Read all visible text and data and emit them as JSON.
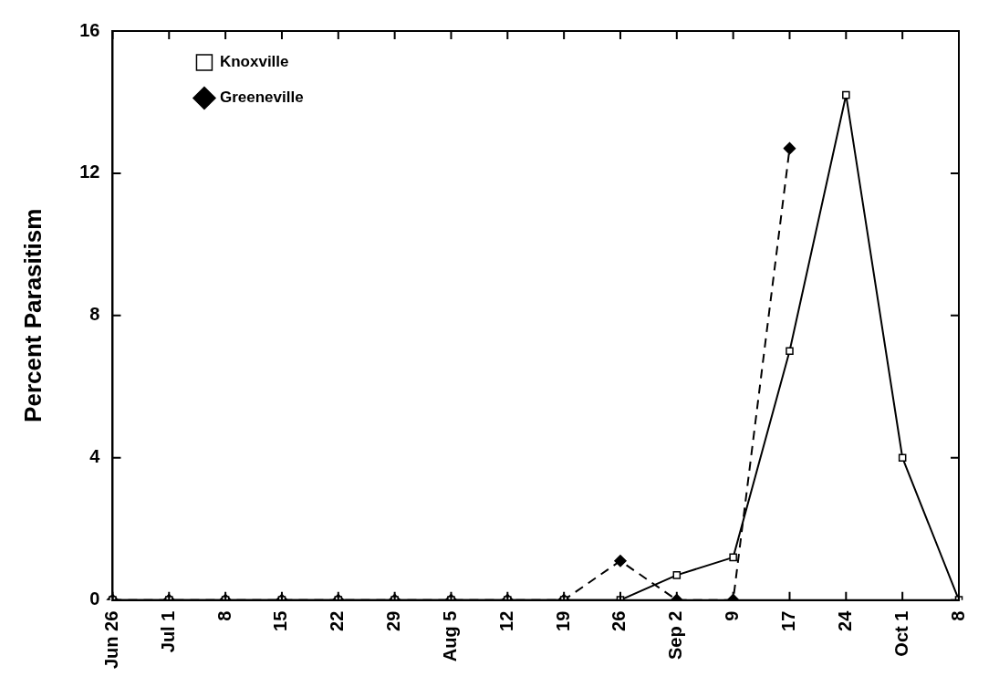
{
  "chart_data": {
    "type": "line",
    "ylabel": "Percent Parasitism",
    "categories": [
      "Jun 26",
      "Jul 1",
      "8",
      "15",
      "22",
      "29",
      "Aug 5",
      "12",
      "19",
      "26",
      "Sep 2",
      "9",
      "17",
      "24",
      "Oct 1",
      "8"
    ],
    "series": [
      {
        "name": "Knoxville",
        "color": "#000000",
        "marker": "square",
        "line_style": "solid",
        "values": [
          0,
          0,
          0,
          0,
          0,
          0,
          0,
          0,
          0,
          0,
          0.7,
          1.2,
          7,
          14.2,
          4,
          0
        ]
      },
      {
        "name": "Greeneville",
        "color": "#000000",
        "marker": "diamond",
        "line_style": "dashed",
        "values": [
          0,
          0,
          0,
          0,
          0,
          0,
          0,
          0,
          0,
          1.1,
          0,
          0,
          12.7,
          null,
          null,
          null
        ]
      }
    ],
    "ylim": [
      0,
      16
    ],
    "yticks": [
      0,
      4,
      8,
      12,
      16
    ],
    "grid": false,
    "legend": "top left"
  }
}
